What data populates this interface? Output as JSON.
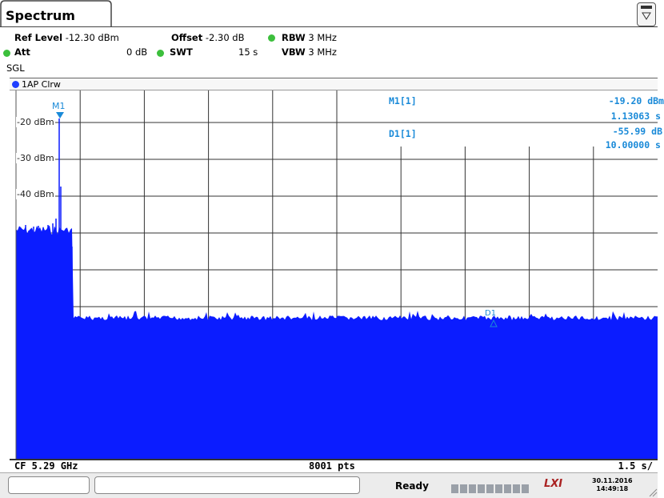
{
  "tab": {
    "title": "Spectrum"
  },
  "settings": {
    "ref_level_label": "Ref Level",
    "ref_level_value": "-12.30 dBm",
    "offset_label": "Offset",
    "offset_value": "-2.30 dB",
    "rbw_label": "RBW",
    "rbw_value": "3 MHz",
    "att_label": "Att",
    "att_value": "0 dB",
    "swt_label": "SWT",
    "swt_value": "15 s",
    "vbw_label": "VBW",
    "vbw_value": "3 MHz",
    "sgl": "SGL"
  },
  "trace": {
    "label": "1AP Clrw"
  },
  "y_axis": {
    "labels": [
      "-20 dBm",
      "-30 dBm",
      "-40 dBm"
    ]
  },
  "markers": {
    "m1_tag": "M1",
    "d1_tag": "D1",
    "m1_name": "M1[1]",
    "m1_level": "-19.20 dBm",
    "m1_time": "1.13063 s",
    "d1_name": "D1[1]",
    "d1_level": "-55.99 dB",
    "d1_time": "10.00000 s"
  },
  "footer": {
    "cf": "CF 5.29 GHz",
    "pts": "8001 pts",
    "div": "1.5 s/"
  },
  "status": {
    "ready": "Ready",
    "date": "30.11.2016",
    "time": "14:49:18",
    "lxi": "LXI"
  },
  "colors": {
    "trace": "#0b1cff",
    "marker": "#1a8ad8",
    "led": "#3cbf3c"
  }
}
